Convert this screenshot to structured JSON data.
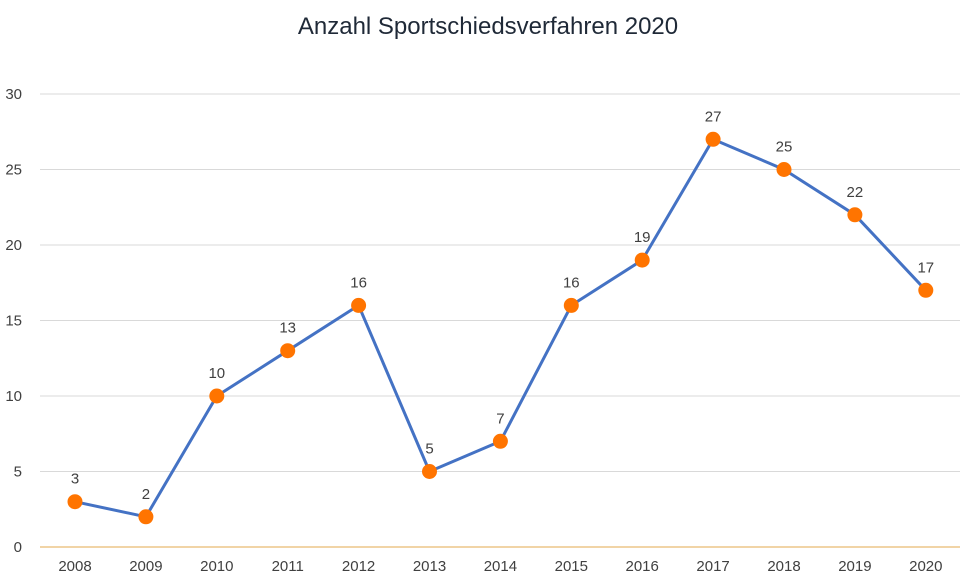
{
  "chart_data": {
    "type": "line",
    "title": "Anzahl Sportschiedsverfahren 2020",
    "xlabel": "",
    "ylabel": "",
    "categories": [
      "2008",
      "2009",
      "2010",
      "2011",
      "2012",
      "2013",
      "2014",
      "2015",
      "2016",
      "2017",
      "2018",
      "2019",
      "2020"
    ],
    "series": [
      {
        "values": [
          3,
          2,
          10,
          13,
          16,
          5,
          7,
          16,
          19,
          27,
          25,
          22,
          17
        ]
      }
    ],
    "ylim": [
      0,
      30
    ],
    "yticks": [
      "0",
      "5",
      "10",
      "15",
      "20",
      "25",
      "30"
    ],
    "data_labels": true,
    "grid": true,
    "legend": "none",
    "colors": {
      "line": "#4472C4",
      "marker": "#FF7400",
      "x_axis": "#E3A94C"
    }
  }
}
